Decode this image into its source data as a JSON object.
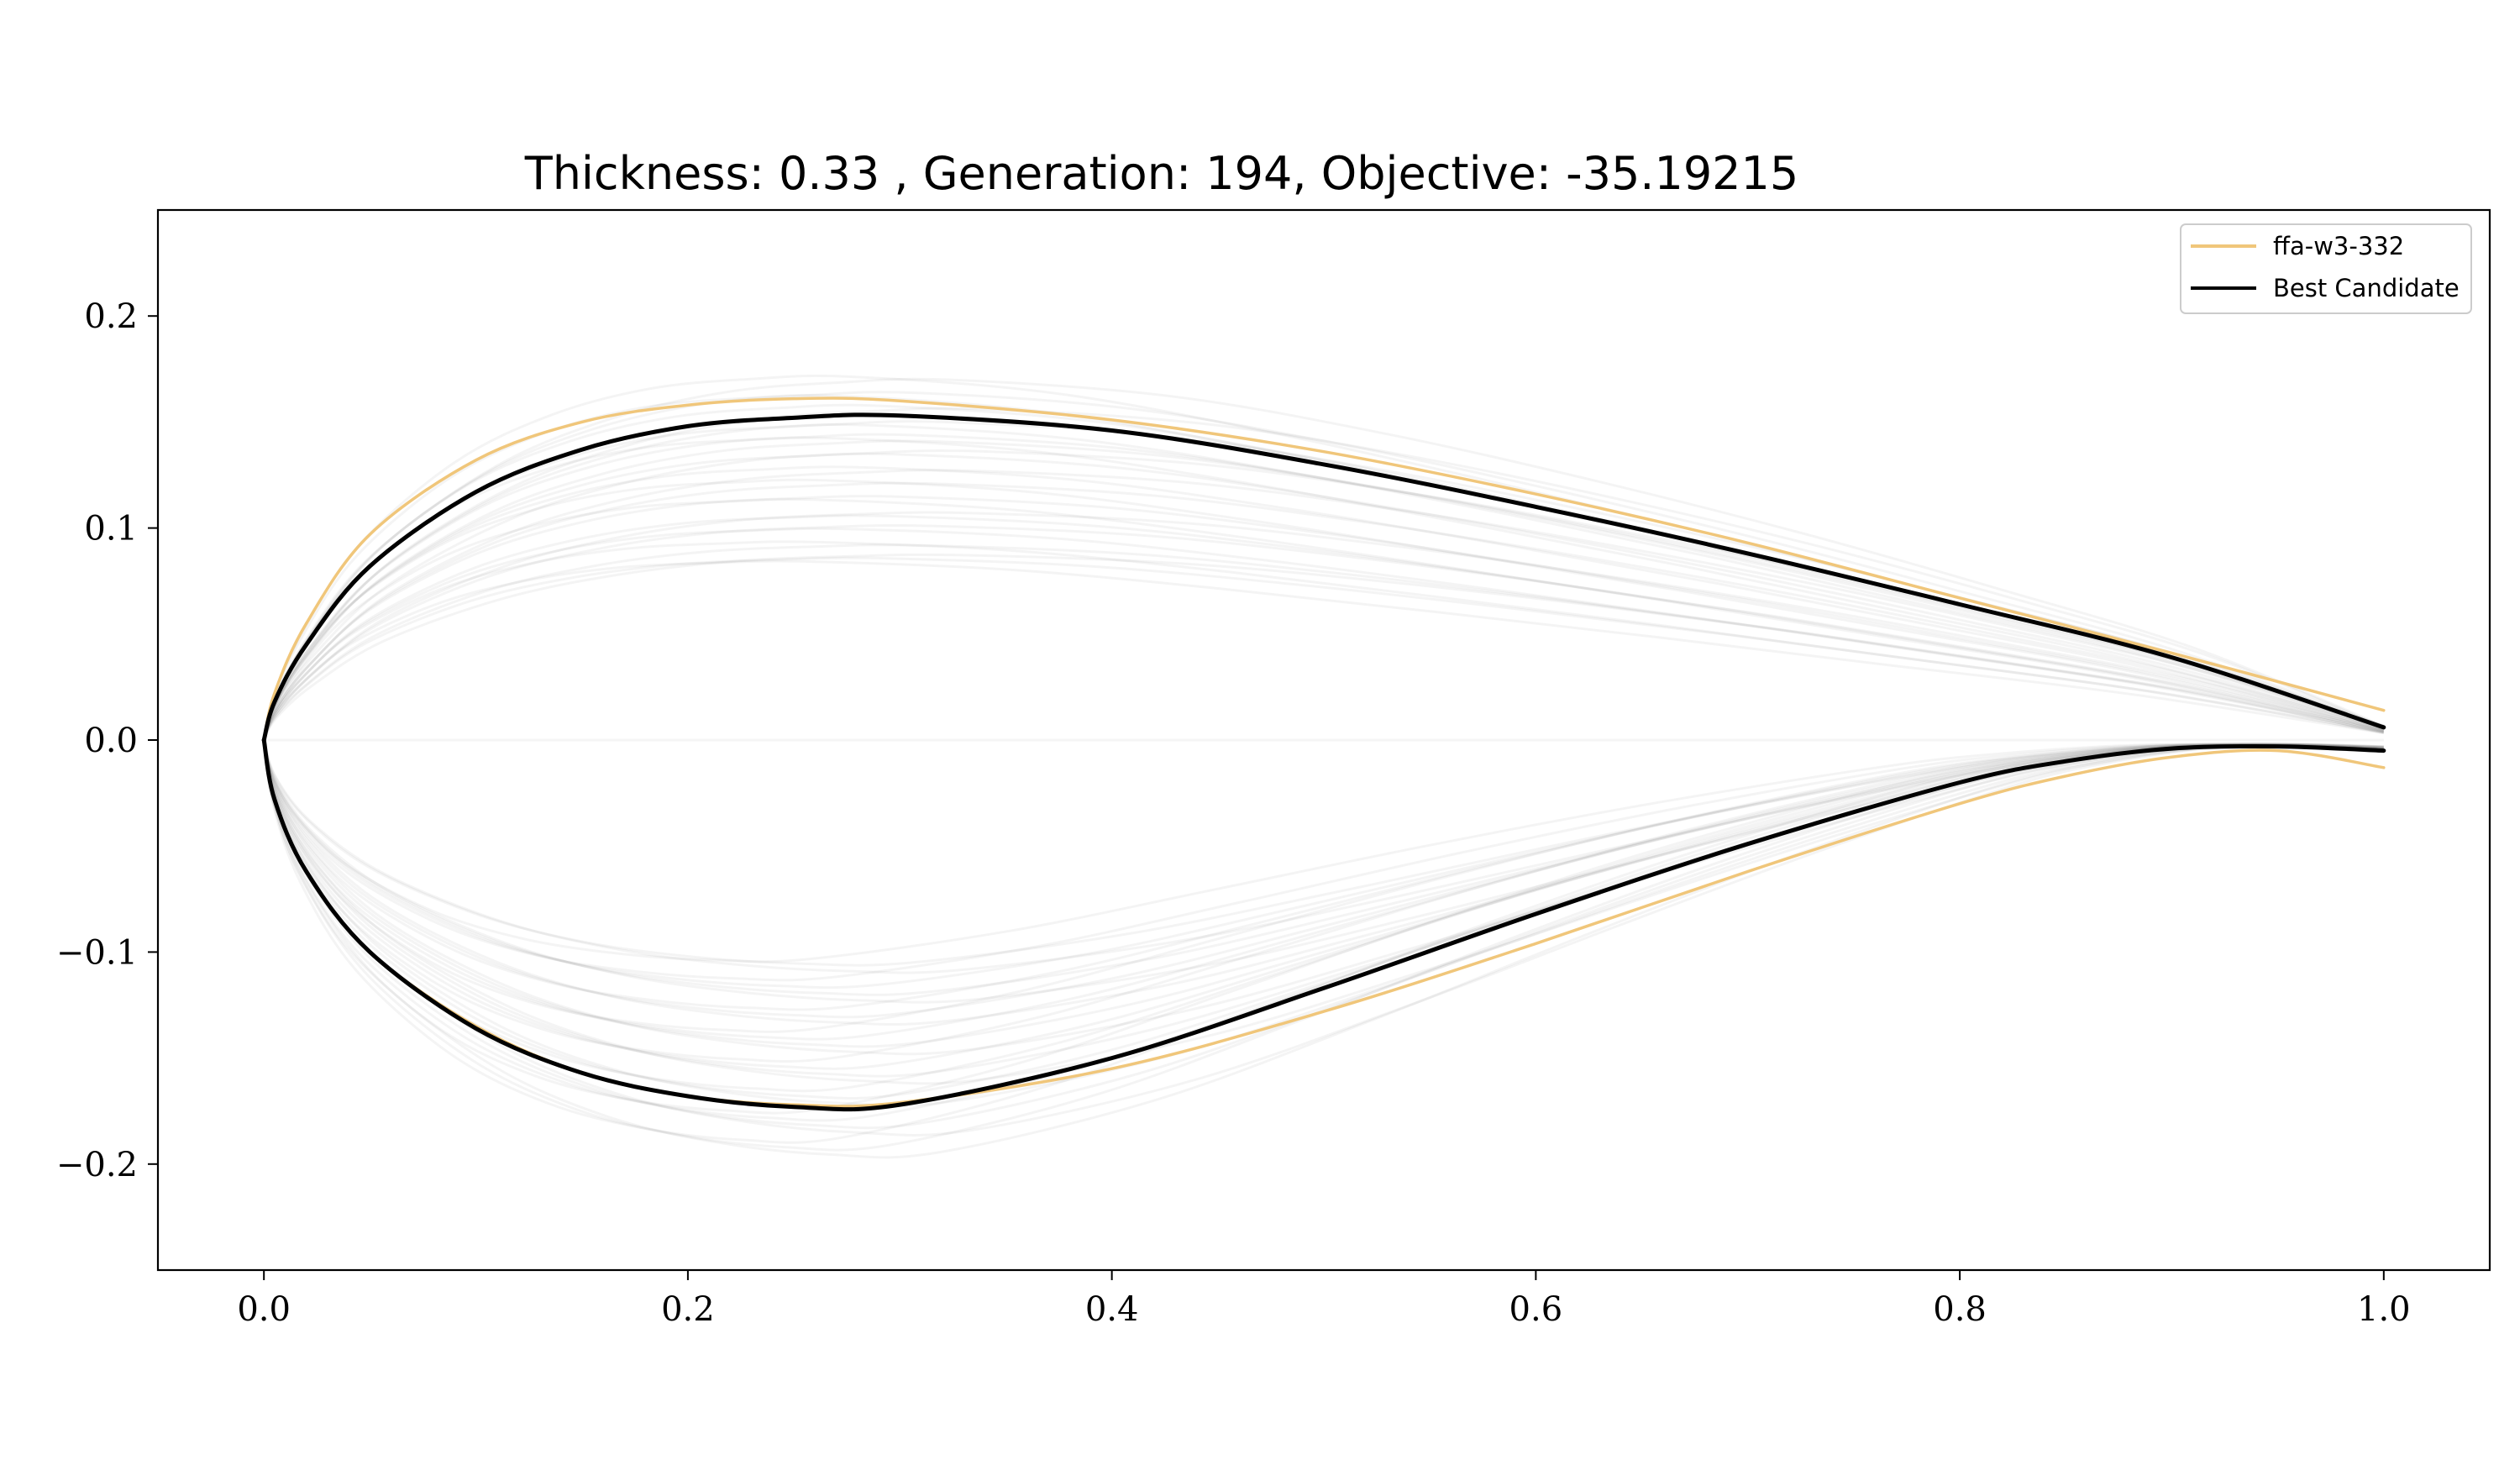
{
  "chart_data": {
    "type": "line",
    "title": "Thickness: 0.33 , Generation: 194, Objective: -35.19215",
    "xlabel": "",
    "ylabel": "",
    "xlim": [
      -0.05,
      1.05
    ],
    "ylim": [
      -0.25,
      0.25
    ],
    "x_ticks": [
      0.0,
      0.2,
      0.4,
      0.6,
      0.8,
      1.0
    ],
    "x_tick_labels": [
      "0.0",
      "0.2",
      "0.4",
      "0.6",
      "0.8",
      "1.0"
    ],
    "y_ticks": [
      -0.2,
      -0.1,
      0.0,
      0.1,
      0.2
    ],
    "y_tick_labels": [
      "−0.2",
      "−0.1",
      "0.0",
      "0.1",
      "0.2"
    ],
    "grid": false,
    "legend_position": "top-right",
    "series": [
      {
        "name": "ffa-w3-332",
        "color": "#f0c67a",
        "upper": {
          "x": [
            0.0,
            0.005,
            0.02,
            0.05,
            0.1,
            0.15,
            0.2,
            0.25,
            0.3,
            0.4,
            0.5,
            0.6,
            0.7,
            0.8,
            0.9,
            1.0
          ],
          "y": [
            0.0,
            0.022,
            0.055,
            0.097,
            0.132,
            0.15,
            0.158,
            0.161,
            0.16,
            0.151,
            0.136,
            0.116,
            0.093,
            0.067,
            0.041,
            0.014
          ]
        },
        "lower": {
          "x": [
            0.0,
            0.005,
            0.02,
            0.05,
            0.1,
            0.15,
            0.2,
            0.25,
            0.3,
            0.4,
            0.5,
            0.6,
            0.7,
            0.8,
            0.85,
            0.9,
            0.95,
            1.0
          ],
          "y": [
            0.0,
            -0.028,
            -0.062,
            -0.1,
            -0.135,
            -0.157,
            -0.168,
            -0.172,
            -0.171,
            -0.155,
            -0.128,
            -0.096,
            -0.062,
            -0.03,
            -0.017,
            -0.008,
            -0.005,
            -0.013
          ]
        }
      },
      {
        "name": "Best Candidate",
        "color": "#000000",
        "upper": {
          "x": [
            0.0,
            0.005,
            0.02,
            0.05,
            0.1,
            0.15,
            0.2,
            0.25,
            0.3,
            0.4,
            0.5,
            0.6,
            0.7,
            0.8,
            0.9,
            1.0
          ],
          "y": [
            0.0,
            0.018,
            0.045,
            0.082,
            0.117,
            0.137,
            0.148,
            0.152,
            0.153,
            0.146,
            0.13,
            0.11,
            0.088,
            0.064,
            0.039,
            0.006
          ]
        },
        "lower": {
          "x": [
            0.0,
            0.005,
            0.02,
            0.05,
            0.1,
            0.15,
            0.2,
            0.25,
            0.3,
            0.4,
            0.5,
            0.6,
            0.7,
            0.8,
            0.85,
            0.9,
            0.95,
            1.0
          ],
          "y": [
            0.0,
            -0.028,
            -0.062,
            -0.1,
            -0.136,
            -0.157,
            -0.168,
            -0.173,
            -0.172,
            -0.15,
            -0.117,
            -0.082,
            -0.049,
            -0.02,
            -0.01,
            -0.004,
            -0.003,
            -0.005
          ]
        }
      }
    ]
  }
}
